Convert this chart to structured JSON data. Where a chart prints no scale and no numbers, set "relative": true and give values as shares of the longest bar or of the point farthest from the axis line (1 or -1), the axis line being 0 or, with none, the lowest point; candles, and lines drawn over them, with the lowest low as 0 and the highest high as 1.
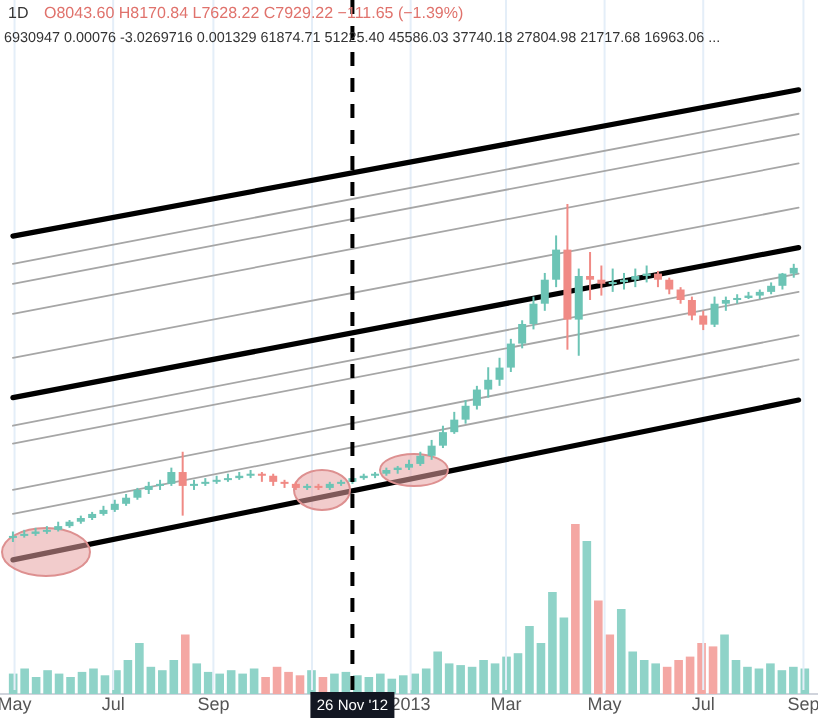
{
  "chart_data": [
    {
      "type": "candlestick",
      "relative": true,
      "tick_labels": "x",
      "grid": "x",
      "x": [
        "2012-04-30",
        "2012-05-07",
        "2012-05-14",
        "2012-05-21",
        "2012-05-28",
        "2012-06-04",
        "2012-06-11",
        "2012-06-18",
        "2012-06-25",
        "2012-07-02",
        "2012-07-09",
        "2012-07-16",
        "2012-07-23",
        "2012-07-30",
        "2012-08-06",
        "2012-08-13",
        "2012-08-20",
        "2012-08-27",
        "2012-09-03",
        "2012-09-10",
        "2012-09-17",
        "2012-09-24",
        "2012-10-01",
        "2012-10-08",
        "2012-10-15",
        "2012-10-22",
        "2012-10-29",
        "2012-11-05",
        "2012-11-12",
        "2012-11-19",
        "2012-11-26",
        "2012-12-03",
        "2012-12-10",
        "2012-12-17",
        "2012-12-24",
        "2012-12-31",
        "2013-01-07",
        "2013-01-14",
        "2013-01-21",
        "2013-01-28",
        "2013-02-04",
        "2013-02-11",
        "2013-02-18",
        "2013-02-25",
        "2013-03-04",
        "2013-03-11",
        "2013-03-18",
        "2013-03-25",
        "2013-04-01",
        "2013-04-08",
        "2013-04-15",
        "2013-04-22",
        "2013-04-29",
        "2013-05-06",
        "2013-05-13",
        "2013-05-20",
        "2013-05-27",
        "2013-06-03",
        "2013-06-10",
        "2013-06-17",
        "2013-06-24",
        "2013-07-01",
        "2013-07-08",
        "2013-07-15",
        "2013-07-22",
        "2013-07-29",
        "2013-08-05",
        "2013-08-12",
        "2013-08-19",
        "2013-08-26"
      ],
      "ohlc": [
        [
          0.013,
          0.031,
          0,
          0.018
        ],
        [
          0.018,
          0.036,
          0.013,
          0.024
        ],
        [
          0.024,
          0.042,
          0.018,
          0.031
        ],
        [
          0.031,
          0.047,
          0.024,
          0.036
        ],
        [
          0.036,
          0.06,
          0.031,
          0.047
        ],
        [
          0.047,
          0.065,
          0.042,
          0.06
        ],
        [
          0.06,
          0.078,
          0.054,
          0.071
        ],
        [
          0.071,
          0.089,
          0.065,
          0.083
        ],
        [
          0.083,
          0.107,
          0.078,
          0.095
        ],
        [
          0.095,
          0.125,
          0.089,
          0.113
        ],
        [
          0.113,
          0.142,
          0.107,
          0.131
        ],
        [
          0.131,
          0.16,
          0.125,
          0.154
        ],
        [
          0.154,
          0.178,
          0.142,
          0.166
        ],
        [
          0.166,
          0.184,
          0.154,
          0.172
        ],
        [
          0.172,
          0.22,
          0.166,
          0.207
        ],
        [
          0.207,
          0.267,
          0.078,
          0.166
        ],
        [
          0.166,
          0.184,
          0.154,
          0.172
        ],
        [
          0.172,
          0.189,
          0.166,
          0.178
        ],
        [
          0.178,
          0.196,
          0.172,
          0.184
        ],
        [
          0.184,
          0.202,
          0.178,
          0.189
        ],
        [
          0.189,
          0.207,
          0.184,
          0.196
        ],
        [
          0.196,
          0.213,
          0.189,
          0.202
        ],
        [
          0.202,
          0.207,
          0.178,
          0.196
        ],
        [
          0.196,
          0.202,
          0.166,
          0.178
        ],
        [
          0.178,
          0.184,
          0.16,
          0.172
        ],
        [
          0.172,
          0.178,
          0.154,
          0.16
        ],
        [
          0.16,
          0.172,
          0.154,
          0.166
        ],
        [
          0.166,
          0.172,
          0.154,
          0.16
        ],
        [
          0.16,
          0.178,
          0.154,
          0.172
        ],
        [
          0.172,
          0.184,
          0.166,
          0.178
        ],
        [
          0.178,
          0.196,
          0.172,
          0.189
        ],
        [
          0.189,
          0.202,
          0.184,
          0.196
        ],
        [
          0.196,
          0.207,
          0.189,
          0.202
        ],
        [
          0.202,
          0.22,
          0.196,
          0.213
        ],
        [
          0.213,
          0.225,
          0.202,
          0.22
        ],
        [
          0.22,
          0.243,
          0.213,
          0.231
        ],
        [
          0.231,
          0.267,
          0.225,
          0.255
        ],
        [
          0.255,
          0.302,
          0.243,
          0.285
        ],
        [
          0.285,
          0.344,
          0.278,
          0.325
        ],
        [
          0.325,
          0.385,
          0.32,
          0.362
        ],
        [
          0.362,
          0.42,
          0.35,
          0.403
        ],
        [
          0.403,
          0.462,
          0.392,
          0.451
        ],
        [
          0.451,
          0.517,
          0.427,
          0.48
        ],
        [
          0.48,
          0.545,
          0.462,
          0.516
        ],
        [
          0.516,
          0.601,
          0.503,
          0.587
        ],
        [
          0.587,
          0.656,
          0.573,
          0.645
        ],
        [
          0.645,
          0.726,
          0.629,
          0.705
        ],
        [
          0.705,
          0.796,
          0.684,
          0.776
        ],
        [
          0.776,
          0.907,
          0.754,
          0.865
        ],
        [
          0.865,
          1,
          0.569,
          0.658
        ],
        [
          0.658,
          0.809,
          0.551,
          0.787
        ],
        [
          0.787,
          0.858,
          0.716,
          0.776
        ],
        [
          0.776,
          0.818,
          0.729,
          0.764
        ],
        [
          0.764,
          0.809,
          0.74,
          0.769
        ],
        [
          0.769,
          0.796,
          0.747,
          0.776
        ],
        [
          0.776,
          0.809,
          0.754,
          0.787
        ],
        [
          0.787,
          0.818,
          0.768,
          0.794
        ],
        [
          0.794,
          0.802,
          0.754,
          0.776
        ],
        [
          0.776,
          0.782,
          0.733,
          0.747
        ],
        [
          0.747,
          0.754,
          0.705,
          0.716
        ],
        [
          0.716,
          0.726,
          0.656,
          0.67
        ],
        [
          0.67,
          0.684,
          0.627,
          0.643
        ],
        [
          0.643,
          0.726,
          0.636,
          0.705
        ],
        [
          0.705,
          0.726,
          0.684,
          0.716
        ],
        [
          0.716,
          0.733,
          0.705,
          0.722
        ],
        [
          0.722,
          0.74,
          0.719,
          0.729
        ],
        [
          0.729,
          0.747,
          0.719,
          0.74
        ],
        [
          0.74,
          0.768,
          0.733,
          0.758
        ],
        [
          0.758,
          0.796,
          0.747,
          0.794
        ],
        [
          0.794,
          0.823,
          0.782,
          0.811
        ]
      ],
      "colors": [
        "#6cc4b5",
        "#6cc4b5",
        "#6cc4b5",
        "#6cc4b5",
        "#6cc4b5",
        "#6cc4b5",
        "#6cc4b5",
        "#6cc4b5",
        "#6cc4b5",
        "#6cc4b5",
        "#6cc4b5",
        "#6cc4b5",
        "#6cc4b5",
        "#6cc4b5",
        "#6cc4b5",
        "#f08a85",
        "#6cc4b5",
        "#6cc4b5",
        "#6cc4b5",
        "#6cc4b5",
        "#6cc4b5",
        "#6cc4b5",
        "#f08a85",
        "#f08a85",
        "#f08a85",
        "#f08a85",
        "#6cc4b5",
        "#f08a85",
        "#6cc4b5",
        "#6cc4b5",
        "#6cc4b5",
        "#6cc4b5",
        "#6cc4b5",
        "#6cc4b5",
        "#6cc4b5",
        "#6cc4b5",
        "#6cc4b5",
        "#6cc4b5",
        "#6cc4b5",
        "#6cc4b5",
        "#6cc4b5",
        "#6cc4b5",
        "#6cc4b5",
        "#6cc4b5",
        "#6cc4b5",
        "#6cc4b5",
        "#6cc4b5",
        "#6cc4b5",
        "#6cc4b5",
        "#f08a85",
        "#6cc4b5",
        "#f08a85",
        "#f08a85",
        "#6cc4b5",
        "#6cc4b5",
        "#6cc4b5",
        "#6cc4b5",
        "#f08a85",
        "#f08a85",
        "#f08a85",
        "#f08a85",
        "#f08a85",
        "#6cc4b5",
        "#6cc4b5",
        "#6cc4b5",
        "#6cc4b5",
        "#6cc4b5",
        "#6cc4b5",
        "#6cc4b5",
        "#6cc4b5"
      ],
      "series": [
        {
          "type": "line",
          "color": "#000000",
          "x": [
            "2012-04-30",
            "2013-08-29"
          ],
          "values": [
            0.905,
            1.338
          ]
        },
        {
          "type": "line",
          "color": "#000000",
          "x": [
            "2012-04-30",
            "2013-08-29"
          ],
          "values": [
            0.427,
            0.871
          ]
        },
        {
          "type": "line",
          "color": "#000000",
          "x": [
            "2012-04-30",
            "2013-08-29"
          ],
          "values": [
            -0.053,
            0.42
          ]
        },
        {
          "type": "line",
          "color": "#a6a6a6",
          "x": [
            "2012-04-30",
            "2013-08-29"
          ],
          "values": [
            0.823,
            1.267
          ]
        },
        {
          "type": "line",
          "color": "#a6a6a6",
          "x": [
            "2012-04-30",
            "2013-08-29"
          ],
          "values": [
            0.764,
            1.207
          ]
        },
        {
          "type": "line",
          "color": "#a6a6a6",
          "x": [
            "2012-04-30",
            "2013-08-29"
          ],
          "values": [
            0.675,
            1.12
          ]
        },
        {
          "type": "line",
          "color": "#a6a6a6",
          "x": [
            "2012-04-30",
            "2013-08-29"
          ],
          "values": [
            0.545,
            0.989
          ]
        },
        {
          "type": "line",
          "color": "#a6a6a6",
          "x": [
            "2012-04-30",
            "2013-08-29"
          ],
          "values": [
            0.344,
            0.794
          ]
        },
        {
          "type": "line",
          "color": "#a6a6a6",
          "x": [
            "2012-04-30",
            "2013-08-29"
          ],
          "values": [
            0.291,
            0.74
          ]
        },
        {
          "type": "line",
          "color": "#a6a6a6",
          "x": [
            "2012-04-30",
            "2013-08-29"
          ],
          "values": [
            0.154,
            0.611
          ]
        },
        {
          "type": "line",
          "color": "#a6a6a6",
          "x": [
            "2012-04-30",
            "2013-08-29"
          ],
          "values": [
            0.083,
            0.54
          ]
        }
      ],
      "xlim": [
        "2012-04-22",
        "2013-09-10"
      ],
      "xticks": [
        {
          "value": "2012-05-01",
          "label": "May"
        },
        {
          "value": "2012-07-01",
          "label": "Jul"
        },
        {
          "value": "2012-09-01",
          "label": "Sep"
        },
        {
          "value": "2012-11-01",
          "label": null
        },
        {
          "value": "2013-01-01",
          "label": "2013"
        },
        {
          "value": "2013-03-01",
          "label": "Mar"
        },
        {
          "value": "2013-05-01",
          "label": "May"
        },
        {
          "value": "2013-07-01",
          "label": "Jul"
        },
        {
          "value": "2013-09-01",
          "label": "Sep"
        }
      ],
      "ref_lines": [
        {
          "axis": "x",
          "value": "2012-11-26",
          "label": "26 Nov '12",
          "color": "#000000",
          "line_style": "dashed"
        }
      ],
      "annotations": [
        "1D",
        "O8043.60 H8170.84 L7628.22 C7929.22 −111.65 (−1.39%)",
        "6930947 0.00076 -3.0269716 0.001329 61874.71 51225.40 45586.03 37740.18 27804.98 21717.68 16963.06 ..."
      ]
    },
    {
      "type": "bar",
      "relative": true,
      "tick_labels": false,
      "categories": [
        null,
        null,
        null,
        null,
        null,
        null,
        null,
        null,
        null,
        null,
        null,
        null,
        null,
        null,
        null,
        null,
        null,
        null,
        null,
        null,
        null,
        null,
        null,
        null,
        null,
        null,
        null,
        null,
        null,
        null,
        null,
        null,
        null,
        null,
        null,
        null,
        null,
        null,
        null,
        null,
        null,
        null,
        null,
        null,
        null,
        null,
        null,
        null,
        null,
        null,
        null,
        null,
        null,
        null,
        null,
        null,
        null,
        null,
        null,
        null,
        null,
        null,
        null,
        null,
        null,
        null,
        null,
        null,
        null,
        null
      ],
      "values": [
        0.12,
        0.15,
        0.1,
        0.14,
        0.12,
        0.1,
        0.13,
        0.15,
        0.11,
        0.14,
        0.2,
        0.3,
        0.16,
        0.14,
        0.2,
        0.35,
        0.18,
        0.13,
        0.12,
        0.14,
        0.12,
        0.15,
        0.1,
        0.16,
        0.13,
        0.11,
        0.14,
        0.1,
        0.12,
        0.13,
        0.11,
        0.1,
        0.12,
        0.09,
        0.11,
        0.12,
        0.15,
        0.25,
        0.18,
        0.17,
        0.16,
        0.2,
        0.18,
        0.22,
        0.24,
        0.4,
        0.3,
        0.6,
        0.45,
        1.0,
        0.9,
        0.55,
        0.35,
        0.5,
        0.25,
        0.2,
        0.18,
        0.16,
        0.2,
        0.22,
        0.3,
        0.28,
        0.35,
        0.2,
        0.16,
        0.15,
        0.18,
        0.14,
        0.16,
        0.15
      ],
      "colors": [
        "#8fd3c8",
        "#8fd3c8",
        "#8fd3c8",
        "#8fd3c8",
        "#8fd3c8",
        "#8fd3c8",
        "#8fd3c8",
        "#8fd3c8",
        "#8fd3c8",
        "#8fd3c8",
        "#8fd3c8",
        "#8fd3c8",
        "#8fd3c8",
        "#8fd3c8",
        "#8fd3c8",
        "#f4a7a3",
        "#8fd3c8",
        "#8fd3c8",
        "#8fd3c8",
        "#8fd3c8",
        "#8fd3c8",
        "#8fd3c8",
        "#f4a7a3",
        "#f4a7a3",
        "#f4a7a3",
        "#f4a7a3",
        "#8fd3c8",
        "#f4a7a3",
        "#8fd3c8",
        "#8fd3c8",
        "#8fd3c8",
        "#8fd3c8",
        "#8fd3c8",
        "#8fd3c8",
        "#8fd3c8",
        "#8fd3c8",
        "#8fd3c8",
        "#8fd3c8",
        "#8fd3c8",
        "#8fd3c8",
        "#8fd3c8",
        "#8fd3c8",
        "#8fd3c8",
        "#8fd3c8",
        "#8fd3c8",
        "#8fd3c8",
        "#8fd3c8",
        "#8fd3c8",
        "#8fd3c8",
        "#f4a7a3",
        "#8fd3c8",
        "#f4a7a3",
        "#f4a7a3",
        "#8fd3c8",
        "#8fd3c8",
        "#8fd3c8",
        "#8fd3c8",
        "#f4a7a3",
        "#f4a7a3",
        "#f4a7a3",
        "#f4a7a3",
        "#f4a7a3",
        "#8fd3c8",
        "#8fd3c8",
        "#8fd3c8",
        "#8fd3c8",
        "#8fd3c8",
        "#8fd3c8",
        "#8fd3c8",
        "#8fd3c8"
      ]
    }
  ]
}
